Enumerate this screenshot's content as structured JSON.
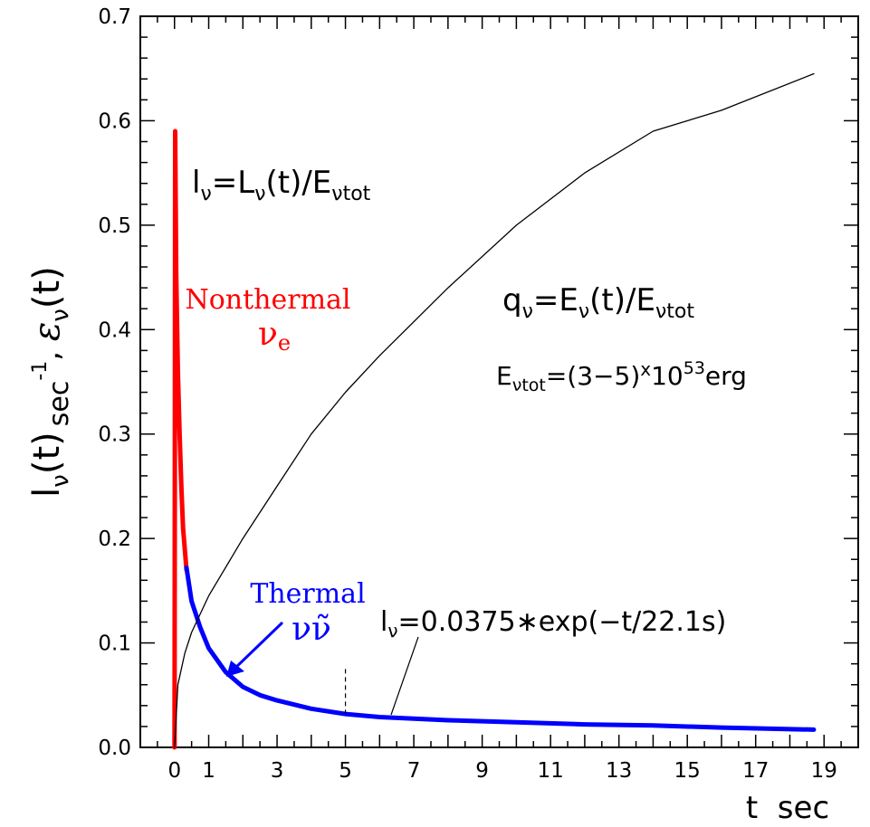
{
  "chart_data": {
    "type": "line",
    "xlabel": "t  sec",
    "ylabel": {
      "l": "l",
      "l_sub": "ν",
      "t": "(t)",
      "unit": "sec",
      "unit_exp": "-1",
      "sep": ", ",
      "eps": "ε",
      "eps_sub": "ν",
      "eps_arg": "(t)"
    },
    "xlim": [
      -1,
      20
    ],
    "ylim": [
      0,
      0.7
    ],
    "x_ticks": [
      0,
      1,
      3,
      5,
      7,
      9,
      11,
      13,
      15,
      17,
      19
    ],
    "y_ticks": [
      "0.0",
      "0.1",
      "0.2",
      "0.3",
      "0.4",
      "0.5",
      "0.6",
      "0.7"
    ],
    "series": [
      {
        "name": "Nonthermal νe",
        "color": "#ff0000",
        "x": [
          0.0,
          0.02,
          0.05,
          0.1,
          0.15,
          0.2,
          0.25,
          0.3,
          0.35
        ],
        "y": [
          0.0,
          0.59,
          0.45,
          0.36,
          0.3,
          0.25,
          0.21,
          0.19,
          0.17
        ]
      },
      {
        "name": "Thermal νν̃",
        "color": "#0000ff",
        "x": [
          0.35,
          0.5,
          0.75,
          1.0,
          1.5,
          2.0,
          2.5,
          3.0,
          4.0,
          5.0,
          6.0,
          8.0,
          10.0,
          12.0,
          14.0,
          16.0,
          18.7
        ],
        "y": [
          0.172,
          0.14,
          0.115,
          0.095,
          0.072,
          0.058,
          0.05,
          0.045,
          0.037,
          0.032,
          0.029,
          0.026,
          0.024,
          0.022,
          0.021,
          0.019,
          0.017
        ]
      },
      {
        "name": "qν",
        "color": "#000000",
        "x": [
          0.0,
          0.1,
          0.3,
          0.5,
          1.0,
          2.0,
          3.0,
          4.0,
          5.0,
          6.0,
          8.0,
          10.0,
          12.0,
          14.0,
          16.0,
          18.7
        ],
        "y": [
          0.0,
          0.06,
          0.09,
          0.11,
          0.145,
          0.2,
          0.25,
          0.3,
          0.34,
          0.375,
          0.44,
          0.5,
          0.55,
          0.59,
          0.61,
          0.645
        ]
      }
    ],
    "marker_x": 5,
    "marker_y_top": 0.075,
    "annotations": {
      "l_def": {
        "l": "l",
        "sub": "ν",
        "eq": "=L",
        "sub2": "ν",
        "mid": "(t)/E",
        "sub3": "νtot"
      },
      "q_def": {
        "q": "q",
        "sub": "ν",
        "eq": "=E",
        "sub2": "ν",
        "mid": "(t)/E",
        "sub3": "νtot"
      },
      "e_tot": {
        "e": "E",
        "sub": "νtot",
        "mid": "=(3−5)",
        "x": "x",
        "ten": "10",
        "exp": "53",
        "unit": "erg"
      },
      "fit": {
        "l": "l",
        "sub": "ν",
        "text": "=0.0375∗exp(−t/22.1s)"
      },
      "nonthermal": {
        "label": "Nonthermal",
        "nu": "ν",
        "sub": "e",
        "color": "#ff0000"
      },
      "thermal": {
        "label": "Thermal",
        "sym": "νν̃",
        "color": "#0000ff"
      }
    }
  }
}
